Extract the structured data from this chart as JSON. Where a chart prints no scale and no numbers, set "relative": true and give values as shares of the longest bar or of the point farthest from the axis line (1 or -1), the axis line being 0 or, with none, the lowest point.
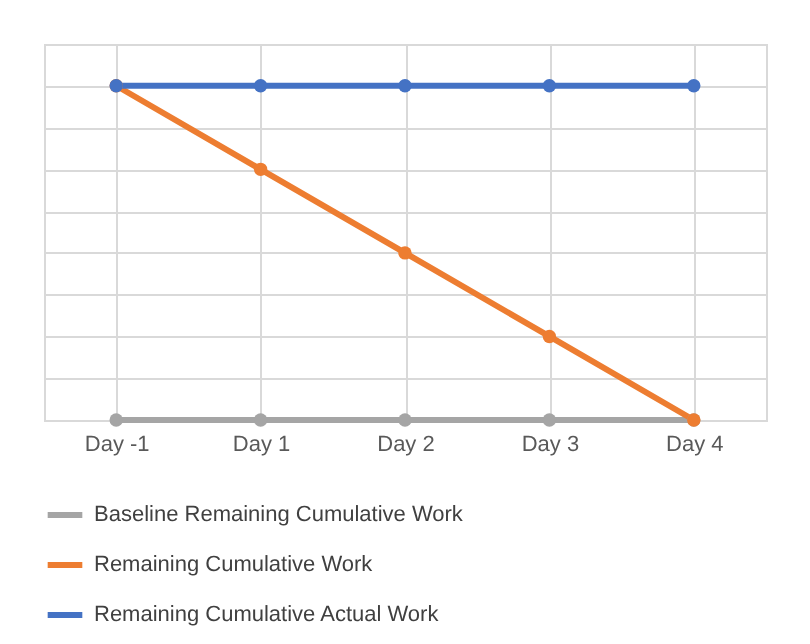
{
  "chart_data": {
    "type": "line",
    "relative": true,
    "categories": [
      "Day -1",
      "Day 1",
      "Day 2",
      "Day 3",
      "Day 4"
    ],
    "series": [
      {
        "name": "Baseline Remaining Cumulative Work",
        "color": "#a5a5a5",
        "values": [
          0,
          0,
          0,
          0,
          0
        ]
      },
      {
        "name": "Remaining Cumulative Work",
        "color": "#ed7d31",
        "values": [
          1,
          0.75,
          0.5,
          0.25,
          0
        ]
      },
      {
        "name": "Remaining Cumulative Actual Work",
        "color": "#4472c4",
        "values": [
          1,
          1,
          1,
          1,
          1
        ]
      }
    ],
    "grid": true,
    "legend": "bottom",
    "marker": "circle",
    "line_style": "solid"
  }
}
